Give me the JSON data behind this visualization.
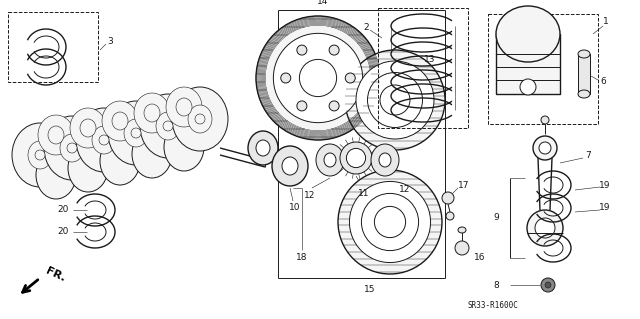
{
  "background_color": "#ffffff",
  "fig_width": 6.4,
  "fig_height": 3.19,
  "dpi": 100,
  "diagram_ref": "SR33-R1600C",
  "arrow_label": "FR.",
  "line_color": "#1a1a1a",
  "label_color": "#1a1a1a",
  "label_fontsize": 6.5,
  "ref_fontsize": 5.5,
  "arrow_fontsize": 7,
  "gray_fill": "#e8e8e8",
  "light_fill": "#f5f5f5",
  "dark_fill": "#555555"
}
